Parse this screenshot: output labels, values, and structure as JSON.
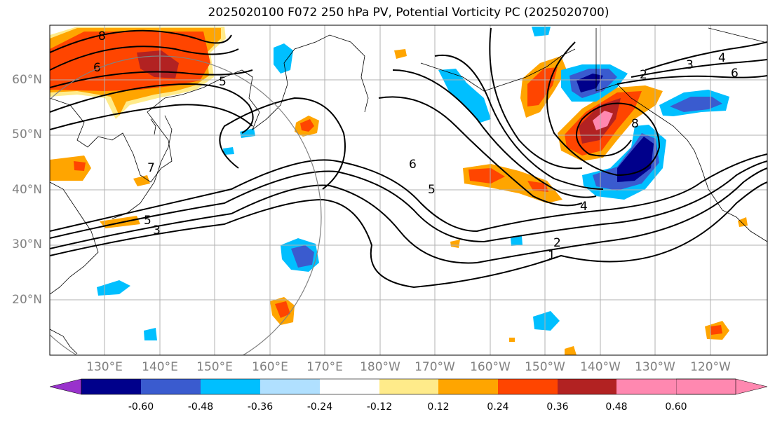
{
  "title": "2025020100 F072 250 hPa PV, Potential Vorticity PC (2025020700)",
  "latitude_labels": [
    "60°N",
    "50°N",
    "40°N",
    "30°N",
    "20°N"
  ],
  "longitude_labels": [
    "130°E",
    "140°E",
    "150°E",
    "160°E",
    "170°E",
    "180°W",
    "170°W",
    "160°W",
    "150°W",
    "140°W",
    "130°W",
    "120°W"
  ],
  "colorbar": {
    "colors": [
      "#9932CC",
      "#00008B",
      "#3A5BCF",
      "#00BFFF",
      "#B0E0FF",
      "#FFFFFF",
      "#FFEB8A",
      "#FFA500",
      "#FF4500",
      "#B22222",
      "#FF88B0"
    ],
    "tick_labels": [
      "-0.60",
      "-0.48",
      "-0.36",
      "-0.24",
      "-0.12",
      "0.12",
      "0.24",
      "0.36",
      "0.48",
      "0.60"
    ]
  },
  "contour_labels": [
    "8",
    "6",
    "5",
    "7",
    "5",
    "3",
    "6",
    "5",
    "4",
    "2",
    "1",
    "2",
    "3",
    "4",
    "6",
    "8"
  ]
}
